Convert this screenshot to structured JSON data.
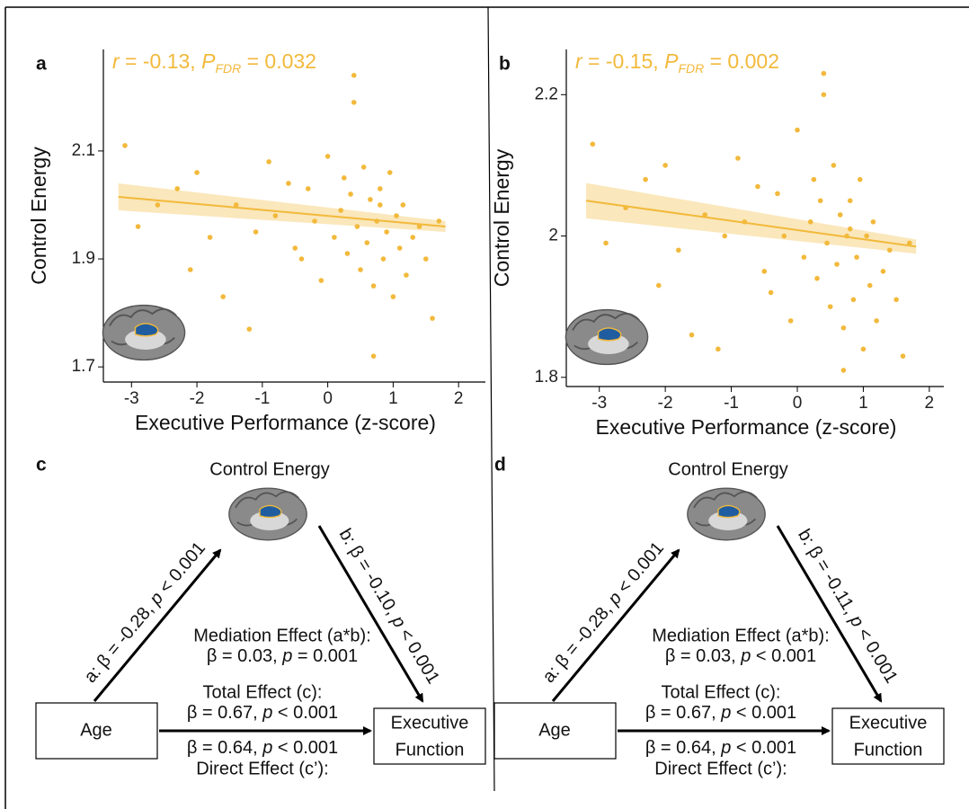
{
  "chart_data": [
    {
      "type": "scatter",
      "panel": "a",
      "annotation": [
        "r",
        " = -0.13, ",
        "P",
        "FDR",
        " = 0.032"
      ],
      "x_label": "Executive Performance (z-score)",
      "y_label": "Control Energy",
      "color": "#f2b93b",
      "x": [
        -3.1,
        -2.9,
        -2.6,
        -2.3,
        -2.1,
        -2.0,
        -1.8,
        -1.6,
        -1.4,
        -1.2,
        -1.1,
        -0.9,
        -0.8,
        -0.6,
        -0.5,
        -0.4,
        -0.3,
        -0.2,
        -0.1,
        0.0,
        0.1,
        0.2,
        0.25,
        0.3,
        0.35,
        0.4,
        0.45,
        0.5,
        0.55,
        0.6,
        0.65,
        0.7,
        0.75,
        0.8,
        0.85,
        0.9,
        0.95,
        1.0,
        1.05,
        1.1,
        1.15,
        1.2,
        1.3,
        1.4,
        1.5,
        1.6,
        1.7,
        0.4,
        0.7,
        0.8
      ],
      "y": [
        2.11,
        1.96,
        2.0,
        2.03,
        1.88,
        2.06,
        1.94,
        1.83,
        2.0,
        1.77,
        1.95,
        2.08,
        1.98,
        2.04,
        1.92,
        1.9,
        2.03,
        1.97,
        1.86,
        2.09,
        1.94,
        1.99,
        2.05,
        1.91,
        2.02,
        2.19,
        1.96,
        1.88,
        2.07,
        1.93,
        2.01,
        1.85,
        1.97,
        2.03,
        1.9,
        1.95,
        2.06,
        1.83,
        1.98,
        1.92,
        2.0,
        1.87,
        1.94,
        1.96,
        1.9,
        1.79,
        1.97,
        2.24,
        1.72,
        2.0
      ],
      "fit": {
        "x": [
          -3.2,
          1.8
        ],
        "y": [
          2.015,
          1.96
        ],
        "lower": [
          1.99,
          1.95
        ],
        "upper": [
          2.04,
          1.97
        ]
      },
      "xlim": [
        -3.43,
        2.41
      ],
      "ylim": [
        1.672,
        2.288
      ],
      "xticks": [
        -3,
        -2,
        -1,
        0,
        1,
        2
      ],
      "yticks": [
        1.7,
        1.9,
        2.1
      ]
    },
    {
      "type": "scatter",
      "panel": "b",
      "annotation": [
        "r",
        " = -0.15, ",
        "P",
        "FDR",
        " = 0.002"
      ],
      "x_label": "Executive Performance (z-score)",
      "y_label": "Control Energy",
      "color": "#f2b93b",
      "x": [
        -3.1,
        -2.9,
        -2.6,
        -2.3,
        -2.1,
        -2.0,
        -1.8,
        -1.6,
        -1.4,
        -1.2,
        -1.1,
        -0.9,
        -0.8,
        -0.6,
        -0.5,
        -0.4,
        -0.3,
        -0.2,
        -0.1,
        0.0,
        0.1,
        0.2,
        0.25,
        0.3,
        0.35,
        0.4,
        0.45,
        0.5,
        0.55,
        0.6,
        0.65,
        0.7,
        0.75,
        0.8,
        0.85,
        0.9,
        0.95,
        1.0,
        1.05,
        1.1,
        1.15,
        1.2,
        1.3,
        1.4,
        1.5,
        1.6,
        1.7,
        0.4,
        0.7,
        0.8
      ],
      "y": [
        2.13,
        1.99,
        2.04,
        2.08,
        1.93,
        2.1,
        1.98,
        1.86,
        2.03,
        1.84,
        2.0,
        2.11,
        2.02,
        2.07,
        1.95,
        1.92,
        2.06,
        2.0,
        1.88,
        2.15,
        1.97,
        2.02,
        2.08,
        1.94,
        2.05,
        2.2,
        1.99,
        1.9,
        2.1,
        1.96,
        2.03,
        1.87,
        2.0,
        2.05,
        1.91,
        1.97,
        2.08,
        1.84,
        2.0,
        1.93,
        2.02,
        1.88,
        1.95,
        1.98,
        1.91,
        1.83,
        1.99,
        2.23,
        1.81,
        2.01
      ],
      "fit": {
        "x": [
          -3.2,
          1.8
        ],
        "y": [
          2.05,
          1.985
        ],
        "lower": [
          2.025,
          1.975
        ],
        "upper": [
          2.075,
          1.995
        ]
      },
      "xlim": [
        -3.5,
        2.22
      ],
      "ylim": [
        1.787,
        2.264
      ],
      "xticks": [
        -3,
        -2,
        -1,
        0,
        1,
        2
      ],
      "yticks": [
        1.8,
        2.0,
        2.2
      ]
    }
  ],
  "diagrams": [
    {
      "panel": "c",
      "mediator": "Control Energy",
      "predictor": "Age",
      "outcome": [
        "Executive",
        "Function"
      ],
      "path_a": [
        "a: β = -0.28, ",
        "p",
        " < 0.001"
      ],
      "path_b": [
        "b: β = -0.10, ",
        "p",
        " < 0.001"
      ],
      "mediation_label": "Mediation Effect (a*b):",
      "mediation": [
        "β = 0.03, ",
        "p",
        " = 0.001"
      ],
      "total_label": "Total Effect (c):",
      "total": [
        "β = 0.67, ",
        "p",
        " < 0.001"
      ],
      "direct": [
        "β = 0.64, ",
        "p",
        " < 0.001"
      ],
      "direct_label": "Direct Effect (c’):"
    },
    {
      "panel": "d",
      "mediator": "Control Energy",
      "predictor": "Age",
      "outcome": [
        "Executive",
        "Function"
      ],
      "path_a": [
        "a: β = -0.28, ",
        "p",
        " < 0.001"
      ],
      "path_b": [
        "b: β = -0.11, ",
        "p",
        " < 0.001"
      ],
      "mediation_label": "Mediation Effect (a*b):",
      "mediation": [
        "β = 0.03, ",
        "p",
        " < 0.001"
      ],
      "total_label": "Total Effect (c):",
      "total": [
        "β = 0.67, ",
        "p",
        " < 0.001"
      ],
      "direct": [
        "β = 0.64, ",
        "p",
        " < 0.001"
      ],
      "direct_label": "Direct Effect (c’):"
    }
  ]
}
